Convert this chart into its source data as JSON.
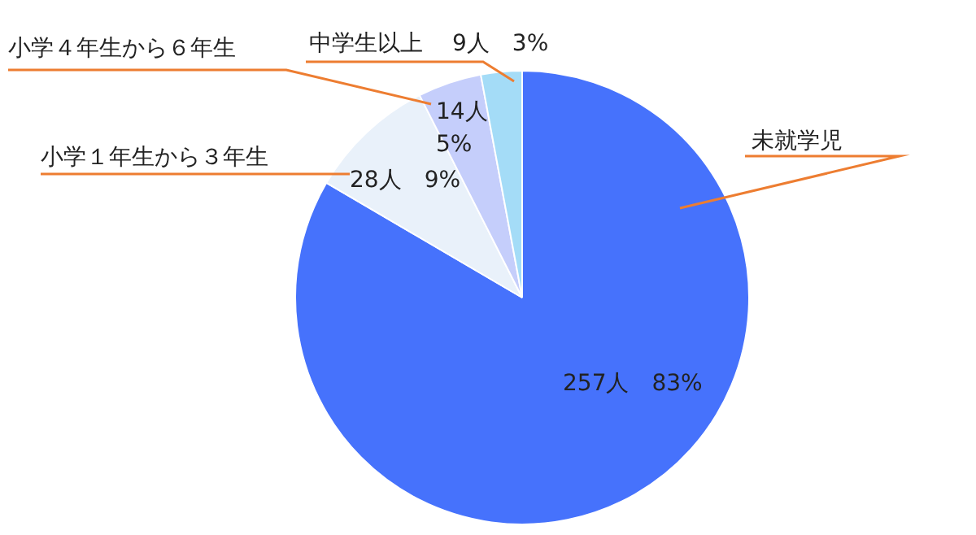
{
  "chart_data": {
    "type": "pie",
    "categories": [
      "未就学児",
      "小学１年生から３年生",
      "小学４年生から６年生",
      "中学生以上"
    ],
    "values": [
      257,
      28,
      14,
      9
    ],
    "colors": [
      "#4672fc",
      "#e9f1fa",
      "#c5cefb",
      "#a4dcf7"
    ],
    "value_labels": [
      "257人　83%",
      "28人　9%",
      "14人\n5%",
      "9人　3%"
    ],
    "legend": false
  }
}
